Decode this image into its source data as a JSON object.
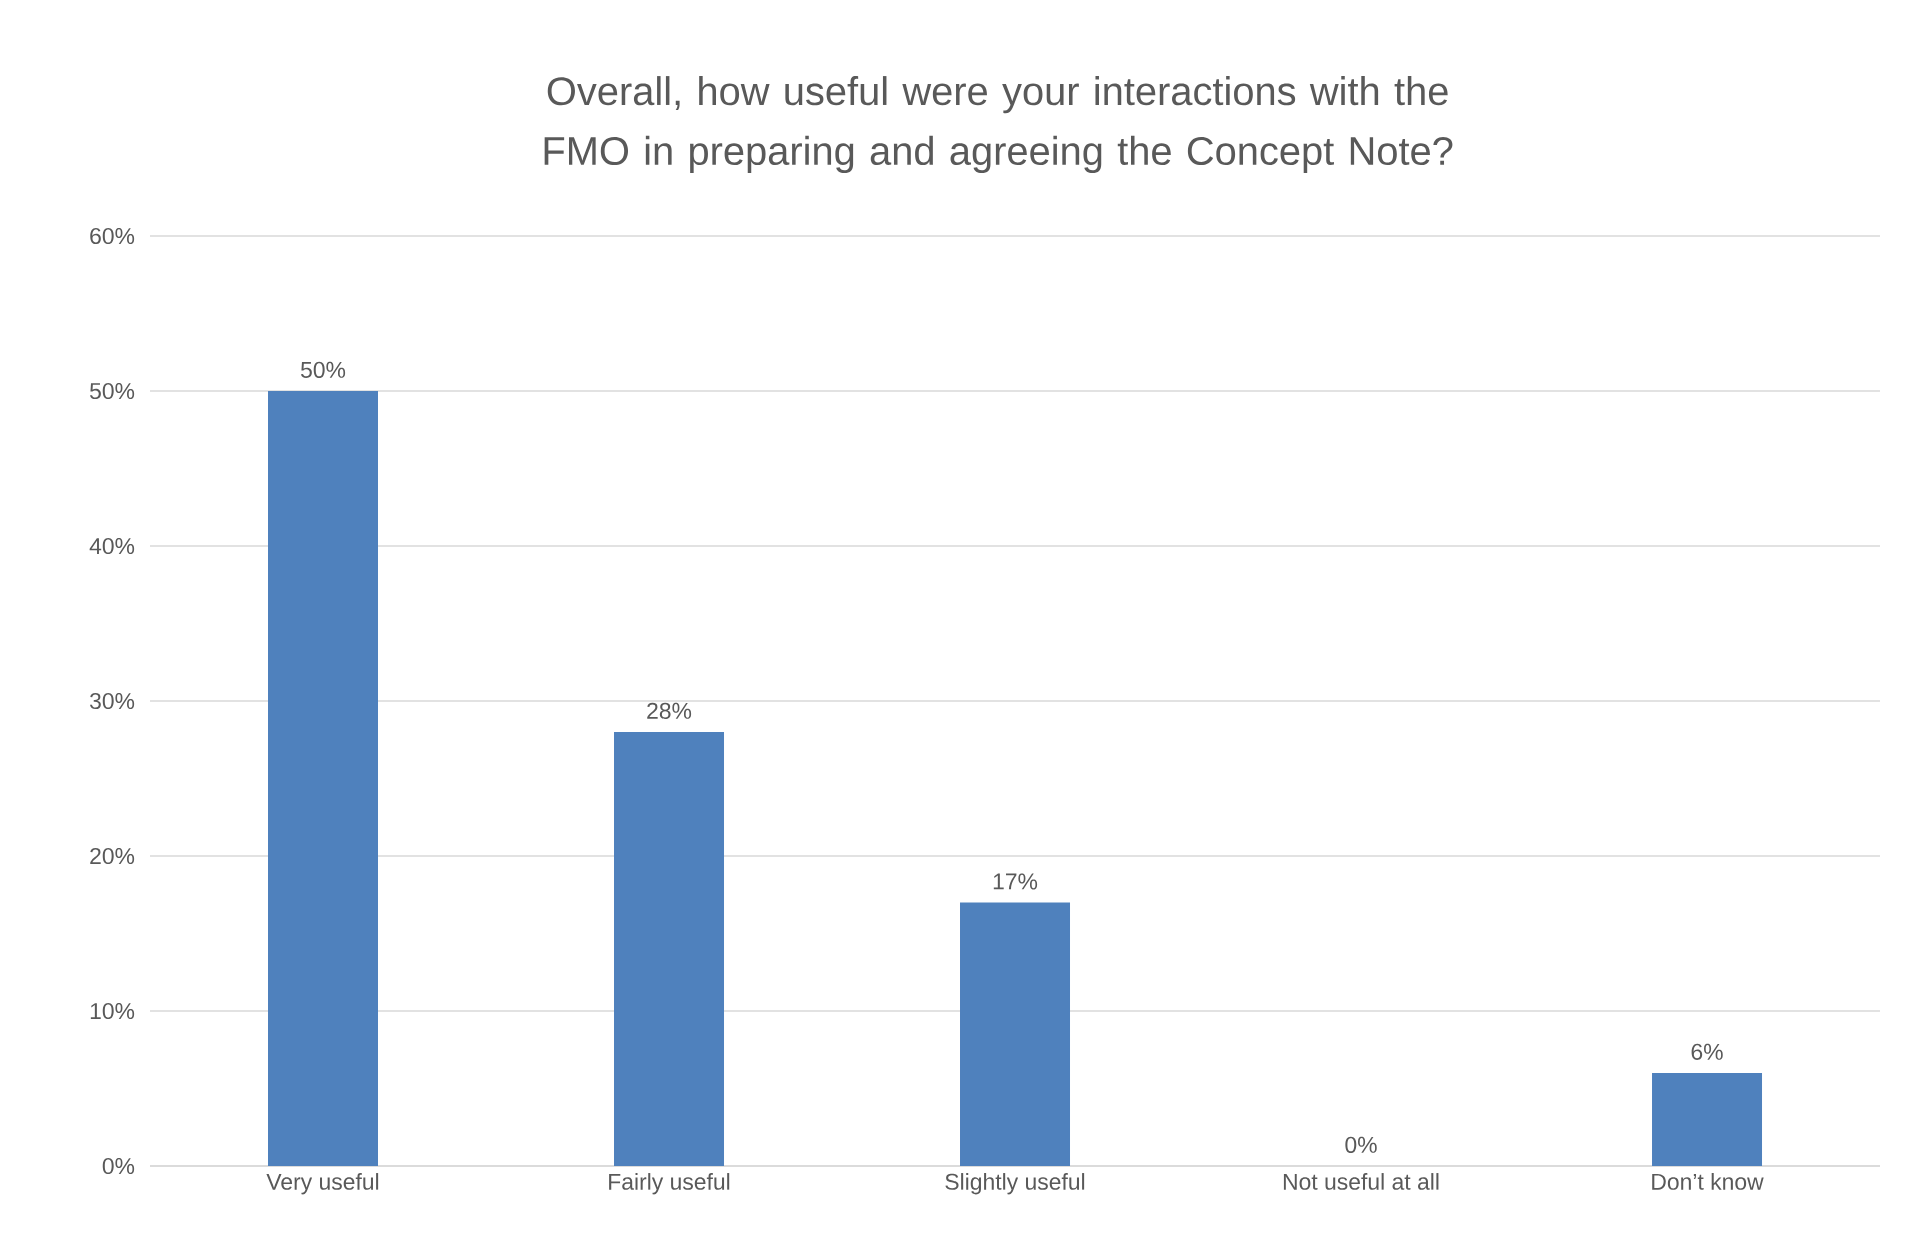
{
  "chart_data": {
    "type": "bar",
    "title": "Overall, how useful were your interactions with the FMO in preparing and agreeing the Concept Note?",
    "categories": [
      "Very useful",
      "Fairly useful",
      "Slightly useful",
      "Not useful at all",
      "Don’t know"
    ],
    "values": [
      50,
      28,
      17,
      0,
      6
    ],
    "value_labels": [
      "50%",
      "28%",
      "17%",
      "0%",
      "6%"
    ],
    "color": "#4f81bd",
    "ylim": [
      0,
      60
    ],
    "yticks": [
      {
        "value": 0,
        "label": "0%"
      },
      {
        "value": 10,
        "label": "10%"
      },
      {
        "value": 20,
        "label": "20%"
      },
      {
        "value": 30,
        "label": "30%"
      },
      {
        "value": 40,
        "label": "40%"
      },
      {
        "value": 50,
        "label": "50%"
      },
      {
        "value": 60,
        "label": "60%"
      }
    ],
    "grid": "y"
  }
}
